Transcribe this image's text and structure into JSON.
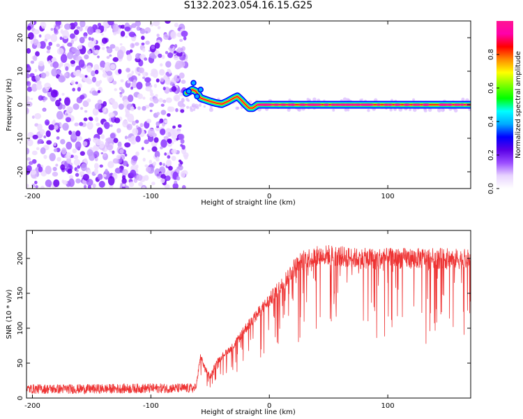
{
  "figure": {
    "title": "S132.2023.054.16.15.G25"
  },
  "chart_data": [
    {
      "type": "heatmap",
      "xlabel": "Height of straight line (km)",
      "ylabel": "Frequency (Hz)",
      "xlim": [
        -205,
        170
      ],
      "ylim": [
        -25,
        25
      ],
      "xticks": [
        -200,
        -100,
        0,
        100
      ],
      "yticks": [
        -20,
        -10,
        0,
        10,
        20
      ],
      "colorbar": {
        "label": "Normalized spectral amplitude",
        "ticks": [
          0.0,
          0.2,
          0.4,
          0.6,
          0.8
        ],
        "range": [
          0,
          1
        ],
        "colormap": [
          "#ffffff",
          "#e8d4ff",
          "#9b4dff",
          "#5a00e6",
          "#0000ff",
          "#00aaff",
          "#00ffff",
          "#00ff00",
          "#7cff00",
          "#ffff00",
          "#ff8c00",
          "#ff0000",
          "#ff00aa",
          "#ff1493"
        ]
      },
      "noise_region": {
        "x_start": -205,
        "x_end": -70,
        "freq_min": -25,
        "freq_max": 25
      },
      "ridge": {
        "x": [
          -70,
          -65,
          -62,
          -58,
          -54,
          -50,
          -45,
          -40,
          -35,
          -30,
          -27,
          -24,
          -20,
          -17,
          -14,
          -10,
          0,
          50,
          100,
          170
        ],
        "freq": [
          3.5,
          4.5,
          4.0,
          2.0,
          1.5,
          1.0,
          0.5,
          0.2,
          1.0,
          2.0,
          2.5,
          1.5,
          0.0,
          -1.0,
          -1.0,
          0.0,
          0.0,
          0.0,
          0.0,
          0.0
        ]
      },
      "grid": false
    },
    {
      "type": "line",
      "xlabel": "Height of straight line (km)",
      "ylabel": "SNR (10 * v/v)",
      "xlim": [
        -205,
        170
      ],
      "ylim": [
        0,
        240
      ],
      "xticks": [
        -200,
        -100,
        0,
        100
      ],
      "yticks": [
        0,
        50,
        100,
        150,
        200
      ],
      "series": [
        {
          "color": "#ee3333",
          "x": [
            -205,
            -150,
            -100,
            -80,
            -62,
            -58,
            -55,
            -50,
            -45,
            -40,
            -30,
            -20,
            -10,
            0,
            10,
            20,
            30,
            50,
            75,
            100,
            125,
            150,
            170
          ],
          "y": [
            13,
            13,
            14,
            14,
            14,
            60,
            45,
            30,
            50,
            60,
            75,
            100,
            120,
            140,
            160,
            185,
            200,
            205,
            200,
            200,
            200,
            200,
            198
          ]
        }
      ],
      "grid": false
    }
  ]
}
